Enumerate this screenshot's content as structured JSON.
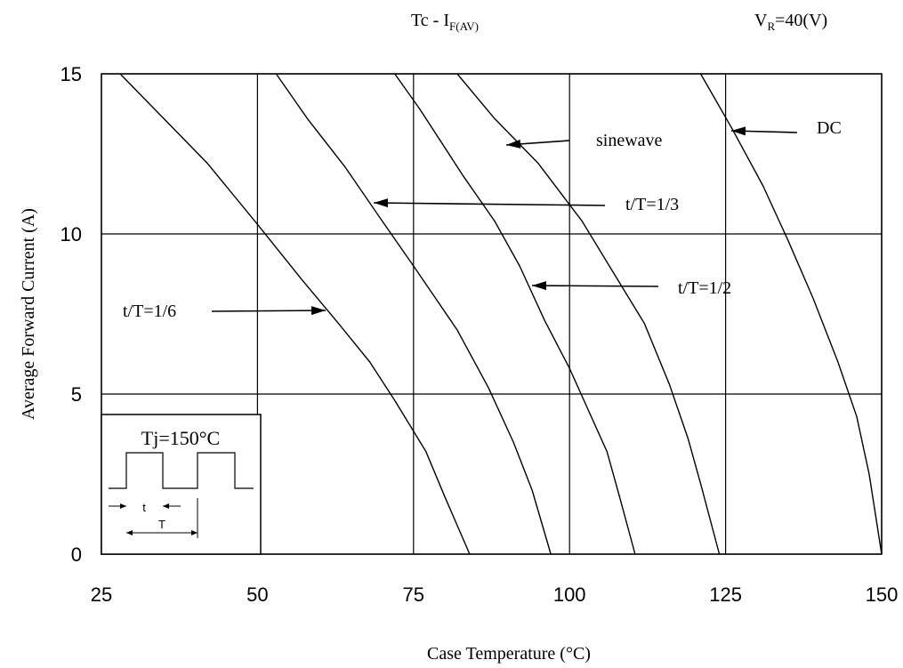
{
  "chart_data": {
    "type": "line",
    "title": "Tc - I",
    "title_sub": "F(AV)",
    "condition_main": "V",
    "condition_sub": "R",
    "condition_rest": "=40(V)",
    "xlabel": "Case Temperature (°C)",
    "ylabel": "Average Forward Current (A)",
    "xlim": [
      25,
      150
    ],
    "ylim": [
      0,
      15
    ],
    "xticks": [
      "25",
      "50",
      "75",
      "100",
      "125",
      "150"
    ],
    "yticks": [
      "0",
      "5",
      "10",
      "15"
    ],
    "grid": true,
    "series": [
      {
        "name": "t/T=1/6",
        "points": [
          [
            28,
            15
          ],
          [
            35,
            13.6
          ],
          [
            42,
            12.2
          ],
          [
            50,
            10.3
          ],
          [
            57,
            8.6
          ],
          [
            63,
            7.2
          ],
          [
            68,
            6.0
          ],
          [
            72,
            4.8
          ],
          [
            77,
            3.2
          ],
          [
            80,
            1.8
          ],
          [
            84,
            0
          ]
        ]
      },
      {
        "name": "t/T=1/3",
        "points": [
          [
            53,
            15
          ],
          [
            58,
            13.6
          ],
          [
            64,
            12.1
          ],
          [
            70,
            10.4
          ],
          [
            75,
            9.0
          ],
          [
            82,
            7.0
          ],
          [
            87,
            5.2
          ],
          [
            91,
            3.5
          ],
          [
            94,
            2.0
          ],
          [
            97,
            0
          ]
        ]
      },
      {
        "name": "t/T=1/2",
        "points": [
          [
            72,
            15
          ],
          [
            76,
            13.9
          ],
          [
            83,
            11.8
          ],
          [
            88,
            10.4
          ],
          [
            92,
            9.0
          ],
          [
            96,
            7.3
          ],
          [
            100,
            5.8
          ],
          [
            103,
            4.5
          ],
          [
            106,
            3.2
          ],
          [
            108,
            1.8
          ],
          [
            110.5,
            0
          ]
        ]
      },
      {
        "name": "sinewave",
        "points": [
          [
            82,
            15
          ],
          [
            88,
            13.6
          ],
          [
            95,
            12.2
          ],
          [
            102,
            10.4
          ],
          [
            107,
            8.8
          ],
          [
            112,
            7.2
          ],
          [
            116,
            5.3
          ],
          [
            119,
            3.6
          ],
          [
            121,
            2.2
          ],
          [
            124,
            0
          ]
        ]
      },
      {
        "name": "DC",
        "points": [
          [
            121,
            15
          ],
          [
            126,
            13.3
          ],
          [
            131,
            11.5
          ],
          [
            135,
            9.8
          ],
          [
            139,
            8.0
          ],
          [
            143,
            6.0
          ],
          [
            146,
            4.3
          ],
          [
            148,
            2.5
          ],
          [
            150,
            0
          ]
        ]
      }
    ],
    "annotations": [
      {
        "text": "sinewave",
        "value": [
          91,
          12.9
        ]
      },
      {
        "text": "t/T=1/3",
        "value": [
          69,
          10.9
        ]
      },
      {
        "text": "t/T=1/2",
        "value": [
          94,
          8.4
        ]
      },
      {
        "text": "t/T=1/6",
        "value": [
          62,
          7.6
        ]
      },
      {
        "text": "DC",
        "value": [
          126,
          13.3
        ]
      }
    ],
    "inset": {
      "title": "Tj=150°C",
      "t_label": "t",
      "T_label": "T"
    }
  }
}
